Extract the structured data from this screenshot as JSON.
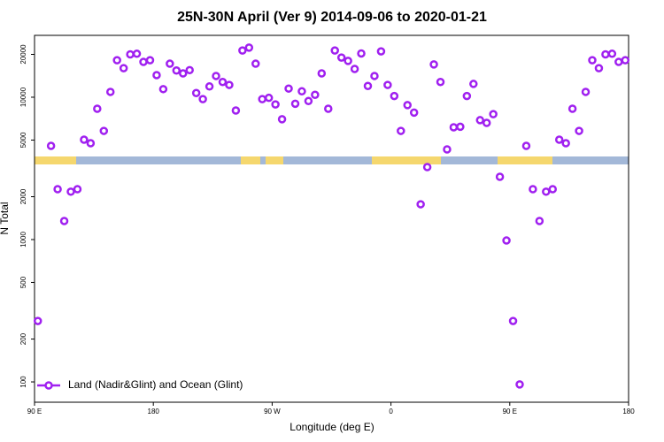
{
  "chart_data": {
    "type": "scatter",
    "title": "25N-30N April (Ver 9)   2014-09-06 to 2020-01-21",
    "xlabel": "Longitude (deg E)",
    "ylabel": "N Total",
    "log_y": true,
    "legend": "bottom-left",
    "xlim": [
      90,
      540
    ],
    "ylim": [
      72,
      27200
    ],
    "xticks": [
      {
        "value": 90,
        "label": "90 E"
      },
      180,
      {
        "value": 270,
        "label": "90 W"
      },
      {
        "value": 360,
        "label": "0"
      },
      {
        "value": 450,
        "label": "90 E"
      },
      {
        "value": 540,
        "label": "180"
      }
    ],
    "yticks": [
      100,
      200,
      500,
      1000,
      2000,
      5000,
      10000,
      20000
    ],
    "series": [
      {
        "name": "Land (Nadir&Glint) and Ocean (Glint)",
        "color": "#a020f0",
        "x": [
          92.5,
          102.5,
          107.5,
          112.5,
          117.5,
          122.5,
          127.5,
          132.5,
          137.5,
          142.5,
          147.5,
          152.5,
          157.5,
          162.5,
          167.5,
          172.5,
          177.5,
          182.5,
          187.5,
          192.5,
          197.5,
          202.5,
          207.5,
          212.5,
          217.5,
          222.5,
          227.5,
          232.5,
          237.5,
          242.5,
          247.5,
          252.5,
          257.5,
          262.5,
          267.5,
          272.5,
          277.5,
          282.5,
          287.5,
          292.5,
          297.5,
          302.5,
          307.5,
          312.5,
          317.5,
          322.5,
          327.5,
          332.5,
          337.5,
          342.5,
          347.5,
          352.5,
          357.5,
          362.5,
          367.5,
          372.5,
          377.5,
          382.5,
          387.5,
          392.5,
          397.5,
          402.5,
          407.5,
          412.5,
          417.5,
          422.5,
          427.5,
          432.5,
          437.5,
          442.5,
          447.5,
          452.5,
          457.5,
          462.5,
          467.5,
          472.5,
          477.5,
          482.5,
          487.5,
          492.5,
          497.5,
          502.5,
          507.5,
          512.5,
          517.5,
          522.5,
          527.5,
          532.5,
          537.5
        ],
        "values": [
          268,
          4550,
          2260,
          1350,
          2170,
          2260,
          5030,
          4750,
          8300,
          5800,
          10900,
          18200,
          16000,
          20000,
          20200,
          17700,
          18200,
          14300,
          11400,
          17200,
          15400,
          14700,
          15500,
          10700,
          9700,
          11900,
          14100,
          12800,
          12200,
          8070,
          21300,
          22300,
          17200,
          9700,
          9900,
          8900,
          7000,
          11500,
          9000,
          11000,
          9400,
          10400,
          14700,
          8300,
          21300,
          19000,
          18000,
          15800,
          20300,
          12000,
          14100,
          21000,
          12200,
          10200,
          5800,
          8800,
          7800,
          1770,
          3230,
          17000,
          12800,
          4300,
          6150,
          6200,
          10200,
          12400,
          6900,
          6600,
          7600,
          2760,
          985,
          268,
          96,
          4550,
          2260,
          1350,
          2170,
          2260,
          5030,
          4750,
          8300,
          5800,
          10900,
          18200,
          16000,
          20000,
          20200,
          17700,
          18200
        ]
      }
    ]
  }
}
